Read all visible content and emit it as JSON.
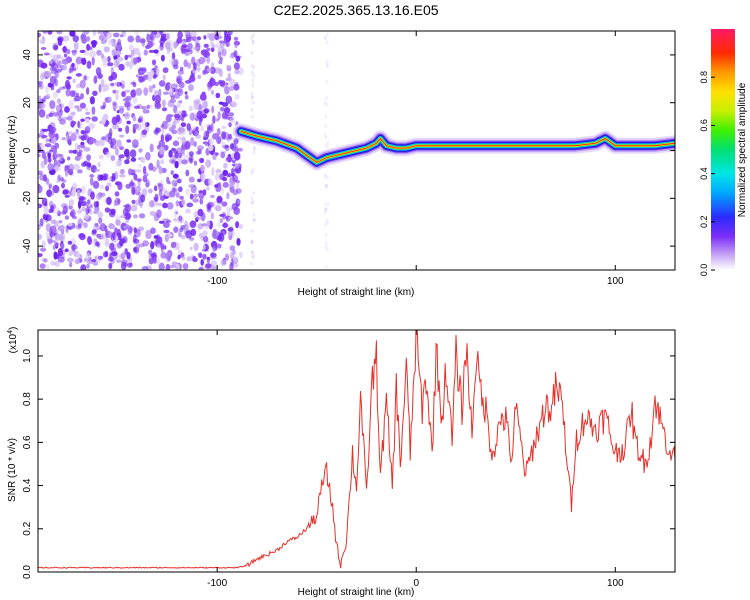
{
  "title": "C2E2.2025.365.13.16.E05",
  "colors": {
    "snr_line": "#e8302a",
    "axis": "#000000",
    "noise_dot": "#7b2ff7",
    "background": "#ffffff"
  },
  "chart_data": [
    {
      "type": "heatmap",
      "name": "spectrogram",
      "xlabel": "Height of straight line (km)",
      "ylabel": "Frequency (Hz)",
      "xlim": [
        -190,
        130
      ],
      "ylim": [
        -50,
        50
      ],
      "xticks": [
        -100,
        0,
        100
      ],
      "xtick_labels": [
        "-100",
        "",
        "100"
      ],
      "yticks": [
        -40,
        -20,
        0,
        20,
        40
      ],
      "ytick_labels": [
        "-40",
        "-20",
        "0",
        "20",
        "40"
      ],
      "noise_region_x": [
        -190,
        -88
      ],
      "ridge": {
        "x": [
          -88,
          -80,
          -70,
          -60,
          -55,
          -50,
          -45,
          -40,
          -35,
          -30,
          -25,
          -20,
          -18,
          -15,
          -10,
          -5,
          0,
          10,
          20,
          40,
          60,
          80,
          90,
          95,
          100,
          110,
          120,
          130
        ],
        "y": [
          8,
          6,
          4,
          1,
          -2,
          -5,
          -3,
          -2,
          -1,
          0,
          1,
          3,
          5,
          2,
          1,
          1,
          2,
          2,
          2,
          2,
          2,
          2,
          3,
          5,
          2,
          2,
          2,
          3
        ]
      },
      "colorbar": {
        "label": "Normalized spectral amplitude",
        "range": [
          0,
          1
        ],
        "ticks": [
          0,
          0.2,
          0.4,
          0.6,
          0.8
        ],
        "tick_labels": [
          "0.0",
          "0.2",
          "0.4",
          "0.6",
          "0.8"
        ]
      }
    },
    {
      "type": "line",
      "name": "snr",
      "xlabel": "Height of straight line (km)",
      "ylabel": "SNR (10 * v/v)",
      "yscale_label": "(x10",
      "yscale_exp": "4",
      "yscale_close": ")",
      "xlim": [
        -190,
        130
      ],
      "ylim": [
        0,
        1.12
      ],
      "xticks": [
        -100,
        0,
        100
      ],
      "xtick_labels": [
        "-100",
        "0",
        "100"
      ],
      "yticks": [
        0,
        0.2,
        0.4,
        0.6,
        0.8,
        1.0
      ],
      "ytick_labels": [
        "0.0",
        "0.2",
        "0.4",
        "0.6",
        "0.8",
        "1.0"
      ],
      "series": [
        {
          "name": "SNR",
          "x": [
            -190,
            -160,
            -130,
            -100,
            -90,
            -85,
            -80,
            -75,
            -70,
            -65,
            -60,
            -55,
            -50,
            -47,
            -45,
            -42,
            -40,
            -38,
            -35,
            -32,
            -30,
            -28,
            -25,
            -22,
            -20,
            -18,
            -15,
            -12,
            -10,
            -8,
            -5,
            -3,
            0,
            3,
            5,
            8,
            10,
            13,
            15,
            18,
            20,
            23,
            25,
            28,
            30,
            33,
            35,
            38,
            40,
            43,
            45,
            48,
            50,
            55,
            60,
            63,
            65,
            68,
            70,
            73,
            75,
            78,
            80,
            85,
            90,
            95,
            100,
            105,
            108,
            110,
            115,
            118,
            120,
            125,
            130
          ],
          "y": [
            0.02,
            0.02,
            0.02,
            0.02,
            0.02,
            0.03,
            0.06,
            0.08,
            0.1,
            0.14,
            0.16,
            0.2,
            0.26,
            0.42,
            0.46,
            0.3,
            0.12,
            0.04,
            0.15,
            0.55,
            0.38,
            0.82,
            0.35,
            0.9,
            0.98,
            0.45,
            0.78,
            0.4,
            0.85,
            0.5,
            0.95,
            0.55,
            1.1,
            0.75,
            0.9,
            0.55,
            1.02,
            0.7,
            0.95,
            0.6,
            1.0,
            0.75,
            1.05,
            0.65,
            1.0,
            0.8,
            0.75,
            0.55,
            0.6,
            0.72,
            0.7,
            0.52,
            0.76,
            0.45,
            0.62,
            0.7,
            0.78,
            0.74,
            0.85,
            0.8,
            0.6,
            0.3,
            0.6,
            0.72,
            0.66,
            0.72,
            0.55,
            0.58,
            0.76,
            0.6,
            0.5,
            0.62,
            0.8,
            0.62,
            0.52
          ]
        }
      ]
    }
  ]
}
